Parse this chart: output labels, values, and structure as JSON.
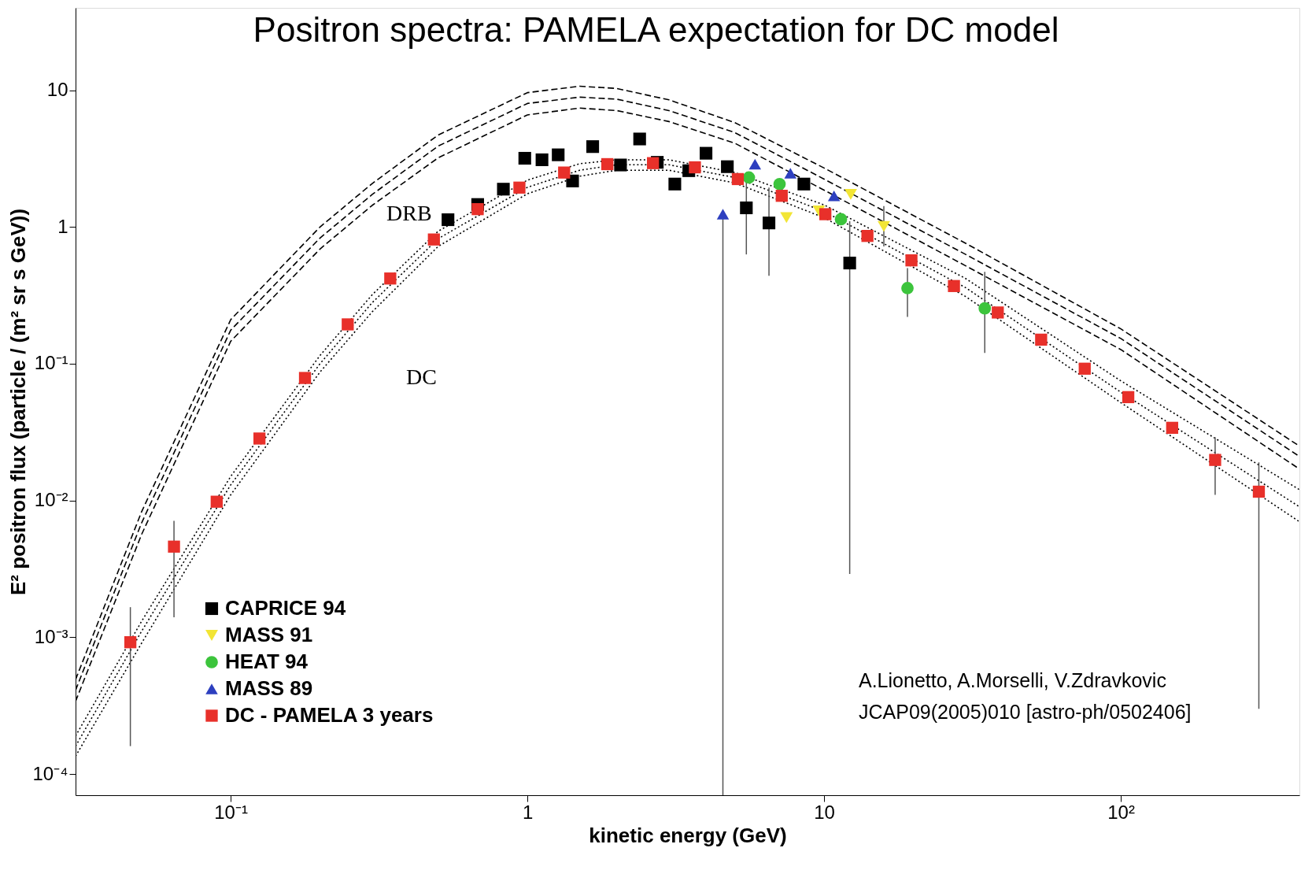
{
  "chart_data": {
    "type": "scatter",
    "title": "Positron spectra: PAMELA expectation for DC model",
    "xlabel": "kinetic energy (GeV)",
    "ylabel": "E² positron flux (particle / (m² sr s GeV))",
    "log": "xy",
    "grid": false,
    "legend": "bottom left",
    "xlim": [
      0.03,
      400
    ],
    "ylim": [
      7e-05,
      40
    ],
    "xticks": [
      {
        "value": 0.1,
        "label": "10⁻¹"
      },
      1,
      10,
      {
        "value": 100,
        "label": "10²"
      }
    ],
    "yticks": [
      {
        "value": 0.0001,
        "label": "10⁻⁴"
      },
      {
        "value": 0.001,
        "label": "10⁻³"
      },
      {
        "value": 0.01,
        "label": "10⁻²"
      },
      {
        "value": 0.1,
        "label": "10⁻¹"
      },
      1,
      10
    ],
    "annotations": [
      "DRB",
      "DC",
      "A.Lionetto, A.Morselli, V.Zdravkovic",
      "JCAP09(2005)010 [astro-ph/0502406]"
    ],
    "series": [
      {
        "type": "line",
        "color": "#000000",
        "line_style": "dashed",
        "x": [
          0.03,
          0.05,
          0.1,
          0.2,
          0.3,
          0.5,
          1,
          1.5,
          2,
          3,
          5,
          10,
          30,
          100,
          400
        ],
        "values": [
          0.00049,
          0.0082,
          0.21,
          1.0,
          2.08,
          4.7,
          9.6,
          10.7,
          10.3,
          8.5,
          5.8,
          2.7,
          0.76,
          0.18,
          0.025
        ]
      },
      {
        "type": "line",
        "color": "#000000",
        "line_style": "dashed",
        "x": [
          0.03,
          0.05,
          0.1,
          0.2,
          0.3,
          0.5,
          1,
          1.5,
          2,
          3,
          5,
          10,
          30,
          100,
          400
        ],
        "values": [
          0.00041,
          0.0068,
          0.176,
          0.83,
          1.73,
          3.9,
          8.0,
          8.9,
          8.6,
          7.1,
          4.9,
          2.24,
          0.63,
          0.153,
          0.021
        ]
      },
      {
        "type": "line",
        "color": "#000000",
        "line_style": "dashed",
        "x": [
          0.03,
          0.05,
          0.1,
          0.2,
          0.3,
          0.5,
          1,
          1.5,
          2,
          3,
          5,
          10,
          30,
          100,
          400
        ],
        "values": [
          0.00034,
          0.0056,
          0.146,
          0.69,
          1.44,
          3.2,
          6.6,
          7.4,
          7.1,
          5.9,
          4.1,
          1.86,
          0.52,
          0.127,
          0.017
        ]
      },
      {
        "type": "line",
        "color": "#000000",
        "line_style": "dotted",
        "x": [
          0.03,
          0.05,
          0.1,
          0.2,
          0.3,
          0.5,
          1,
          1.5,
          2,
          3,
          5,
          10,
          30,
          100,
          400
        ],
        "values": [
          0.00019,
          0.0013,
          0.015,
          0.115,
          0.32,
          0.93,
          2.2,
          2.9,
          3.1,
          3.1,
          2.5,
          1.45,
          0.42,
          0.075,
          0.012
        ]
      },
      {
        "type": "line",
        "color": "#000000",
        "line_style": "dotted",
        "x": [
          0.03,
          0.05,
          0.1,
          0.2,
          0.3,
          0.5,
          1,
          1.5,
          2,
          3,
          5,
          10,
          30,
          100,
          400
        ],
        "values": [
          0.00016,
          0.0011,
          0.013,
          0.1,
          0.28,
          0.82,
          1.95,
          2.6,
          2.85,
          2.85,
          2.3,
          1.3,
          0.36,
          0.062,
          0.009
        ]
      },
      {
        "type": "line",
        "color": "#000000",
        "line_style": "dotted",
        "x": [
          0.03,
          0.05,
          0.1,
          0.2,
          0.3,
          0.5,
          1,
          1.5,
          2,
          3,
          5,
          10,
          30,
          100,
          400
        ],
        "values": [
          0.000135,
          0.0009,
          0.011,
          0.087,
          0.24,
          0.72,
          1.75,
          2.35,
          2.6,
          2.6,
          2.1,
          1.17,
          0.31,
          0.052,
          0.007
        ]
      },
      {
        "name": "CAPRICE 94",
        "color": "#000000",
        "marker": "square",
        "x": [
          0.54,
          0.68,
          0.83,
          0.98,
          1.12,
          1.27,
          1.42,
          1.66,
          2.06,
          2.39,
          2.74,
          3.14,
          3.5,
          4.0,
          4.72,
          5.47,
          6.52,
          8.55,
          12.2
        ],
        "values": [
          1.13,
          1.46,
          1.89,
          3.18,
          3.1,
          3.37,
          2.17,
          3.87,
          2.84,
          4.4,
          2.97,
          2.06,
          2.58,
          3.46,
          2.76,
          1.38,
          1.07,
          2.06,
          0.545
        ],
        "errors": [
          null,
          null,
          null,
          null,
          null,
          null,
          null,
          null,
          null,
          null,
          null,
          null,
          null,
          null,
          null,
          [
            0.63,
            2.5
          ],
          [
            0.44,
            1.94
          ],
          null,
          [
            0.0029,
            1.1
          ]
        ]
      },
      {
        "name": "MASS 91",
        "color": "#f2e535",
        "marker": "triangle-down",
        "x": [
          7.47,
          9.6,
          12.3,
          15.9
        ],
        "values": [
          1.17,
          1.31,
          1.73,
          1.01
        ],
        "errors": [
          null,
          null,
          null,
          [
            0.72,
            1.42
          ]
        ]
      },
      {
        "name": "HEAT 94",
        "color": "#3cc43c",
        "marker": "circle",
        "x": [
          5.58,
          7.08,
          11.4,
          19.1,
          34.8
        ],
        "values": [
          2.3,
          2.06,
          1.14,
          0.357,
          0.254
        ],
        "errors": [
          null,
          null,
          null,
          [
            0.22,
            0.5
          ],
          [
            0.12,
            0.47
          ]
        ]
      },
      {
        "name": "MASS 89",
        "color": "#2d3fbf",
        "marker": "triangle",
        "x": [
          4.56,
          5.85,
          7.7,
          10.8
        ],
        "values": [
          1.24,
          2.88,
          2.47,
          1.69
        ],
        "errors": [
          [
            7e-05,
            1.24
          ],
          null,
          null,
          null
        ]
      },
      {
        "name": "DC - PAMELA 3 years",
        "color": "#e8302a",
        "marker": "square",
        "x": [
          0.0459,
          0.0644,
          0.0897,
          0.125,
          0.178,
          0.248,
          0.345,
          0.484,
          0.68,
          0.94,
          1.33,
          1.86,
          2.65,
          3.67,
          5.12,
          7.2,
          10.1,
          14.0,
          19.7,
          27.4,
          38.5,
          53.9,
          75.6,
          106,
          149,
          208,
          292
        ],
        "values": [
          0.00092,
          0.0046,
          0.0098,
          0.0284,
          0.0787,
          0.194,
          0.42,
          0.81,
          1.35,
          1.94,
          2.5,
          2.88,
          2.93,
          2.73,
          2.24,
          1.69,
          1.24,
          0.86,
          0.57,
          0.37,
          0.237,
          0.15,
          0.092,
          0.057,
          0.034,
          0.0198,
          0.0116
        ],
        "errors": [
          [
            0.00016,
            0.00166
          ],
          [
            0.0014,
            0.0071
          ],
          null,
          null,
          null,
          null,
          null,
          null,
          null,
          null,
          null,
          null,
          null,
          null,
          null,
          null,
          null,
          null,
          null,
          null,
          null,
          null,
          null,
          null,
          null,
          [
            0.011,
            0.029
          ],
          [
            0.0003,
            0.019
          ]
        ]
      }
    ]
  }
}
